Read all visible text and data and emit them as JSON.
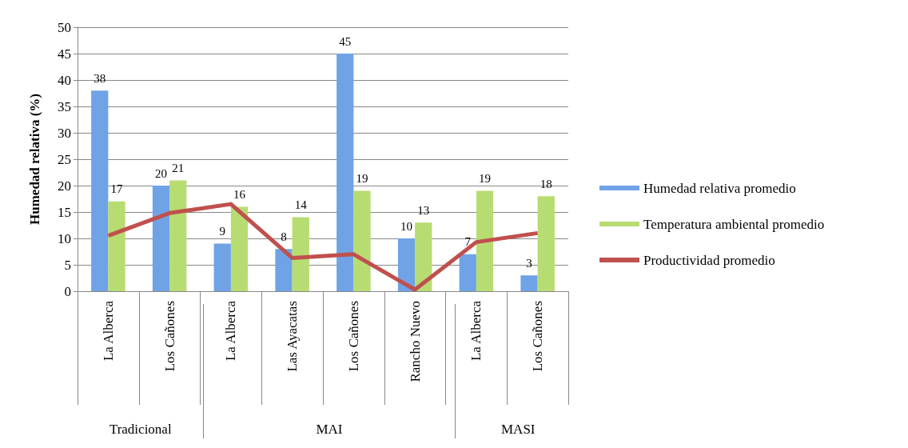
{
  "chart_data": {
    "type": "bar",
    "ylabel": "Humedad relativa (%)",
    "categories": [
      "La Alberca",
      "Los Cañones",
      "La Alberca",
      "Las Ayacatas",
      "Los Cañones",
      "Rancho Nuevo",
      "La Alberca",
      "Los Cañones"
    ],
    "series": [
      {
        "name": "Humedad relativa promedio",
        "color": "#6fa3e6",
        "values": [
          38,
          20,
          9,
          8,
          45,
          10,
          7,
          3
        ],
        "value_labels": [
          "38",
          "20",
          "9",
          "8",
          "45",
          "10",
          "7",
          "3"
        ]
      },
      {
        "name": "Temperatura ambiental promedio",
        "color": "#b7dc72",
        "values": [
          17,
          21,
          16,
          14,
          19,
          13,
          19,
          18
        ],
        "value_labels": [
          "17",
          "21",
          "16",
          "14",
          "19",
          "13",
          "19",
          "18"
        ]
      },
      {
        "name": "Productividad promedio",
        "type": "line",
        "color": "#c0504d",
        "values": [
          10.5,
          14.8,
          16.5,
          6.3,
          7,
          0.3,
          9.3,
          11
        ]
      }
    ],
    "annotations": [
      "Tradicional",
      "MAI",
      "MASI"
    ],
    "ylim": [
      0,
      50
    ],
    "yticks": [
      0,
      5,
      10,
      15,
      20,
      25,
      30,
      35,
      40,
      45,
      50
    ],
    "grid": "y",
    "legend": "right",
    "marker": "none"
  }
}
